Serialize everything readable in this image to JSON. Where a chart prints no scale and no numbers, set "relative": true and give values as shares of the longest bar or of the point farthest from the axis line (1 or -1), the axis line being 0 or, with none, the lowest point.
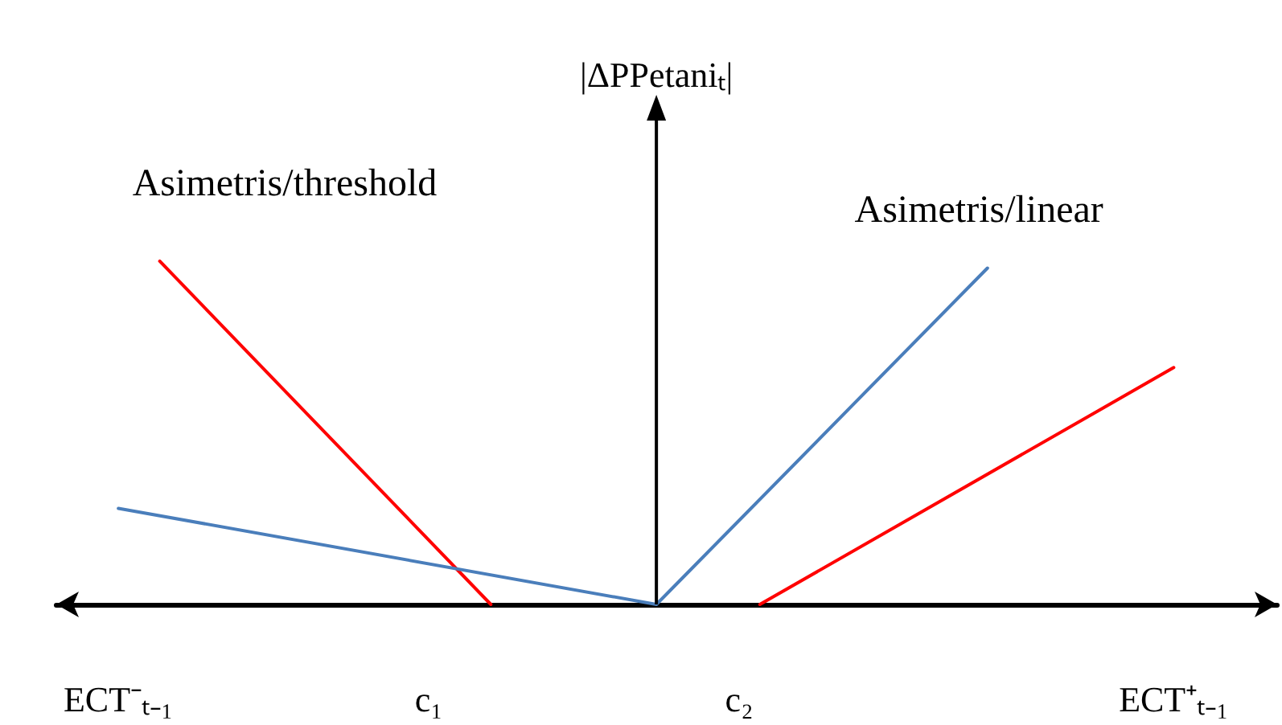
{
  "chart_data": {
    "type": "line",
    "relative": true,
    "ylabel": "|ΔPPetaniₜ|",
    "categories": [
      null,
      null,
      null,
      "ECT⁻ₜ₋₁",
      null,
      null,
      null,
      null,
      null,
      null,
      null,
      null,
      null,
      null,
      null,
      null,
      null,
      null,
      "c₁",
      null,
      null,
      null,
      null,
      null,
      null,
      null,
      null,
      null,
      null,
      null,
      null,
      null,
      null,
      "c₂",
      null,
      null,
      null,
      null,
      null,
      null,
      null,
      null,
      null,
      null,
      null,
      null,
      null,
      null,
      null,
      null,
      null,
      null,
      null,
      null,
      "ECT⁺ₜ₋₁",
      null,
      null,
      null,
      null,
      null
    ],
    "series": [
      {
        "name": "Asimetris/threshold",
        "color": "#ff0000",
        "values": [
          null,
          null,
          null,
          null,
          null,
          1,
          null,
          null,
          null,
          null,
          null,
          null,
          null,
          null,
          null,
          null,
          null,
          null,
          null,
          null,
          null,
          0,
          null,
          null,
          null,
          null,
          null,
          null,
          null,
          null,
          null,
          null,
          null,
          null,
          null,
          null,
          null,
          null,
          null,
          null,
          null,
          null,
          null,
          null,
          null,
          null,
          null,
          null,
          null,
          null,
          null,
          null,
          null,
          null,
          null,
          null,
          null,
          null,
          null,
          null
        ]
      },
      {
        "name": "Asimetris/linear",
        "color": "#4a7ebb",
        "values": [
          null,
          null,
          null,
          0.28,
          null,
          null,
          null,
          null,
          null,
          null,
          null,
          null,
          null,
          null,
          null,
          null,
          null,
          null,
          null,
          null,
          null,
          null,
          null,
          null,
          null,
          null,
          null,
          null,
          null,
          0,
          null,
          null,
          null,
          null,
          null,
          null,
          null,
          null,
          null,
          null,
          null,
          null,
          null,
          null,
          null,
          0.98,
          null,
          null,
          null,
          null,
          null,
          null,
          null,
          null,
          null,
          null,
          null,
          null,
          null,
          null
        ]
      },
      {
        "color": "#ff0000",
        "values": [
          null,
          null,
          null,
          null,
          null,
          null,
          null,
          null,
          null,
          null,
          null,
          null,
          null,
          null,
          null,
          null,
          null,
          null,
          null,
          null,
          null,
          null,
          null,
          null,
          null,
          null,
          null,
          null,
          null,
          null,
          null,
          null,
          null,
          null,
          0,
          null,
          null,
          null,
          null,
          null,
          null,
          null,
          null,
          null,
          null,
          null,
          null,
          null,
          null,
          null,
          null,
          null,
          null,
          null,
          0.69,
          null,
          null,
          null,
          null,
          null
        ]
      }
    ],
    "grid": false,
    "legend": false,
    "marker": "none",
    "line_style": "solid"
  }
}
